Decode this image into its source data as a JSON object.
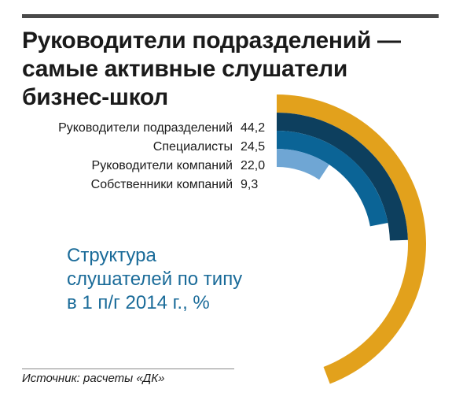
{
  "title": {
    "line1": "Руководители подразделений —",
    "line2": "самые активные слушатели",
    "line3": "бизнес-школ"
  },
  "subtitle": {
    "line1": "Структура",
    "line2": "слушателей по типу",
    "line3": "в 1 п/г 2014 г., %"
  },
  "source": "Источник: расчеты «ДК»",
  "chart_data": {
    "type": "radial-bar",
    "categories": [
      "Руководители подразделений",
      "Специалисты",
      "Руководители компаний",
      "Собственники компаний"
    ],
    "values": [
      44.2,
      24.5,
      22.0,
      9.3
    ],
    "value_labels": [
      "44,2",
      "24,5",
      "22,0",
      "9,3"
    ],
    "colors": [
      "#e2a11c",
      "#0d3f5e",
      "#0b6496",
      "#6fa6d4"
    ],
    "full_scale": 50
  }
}
